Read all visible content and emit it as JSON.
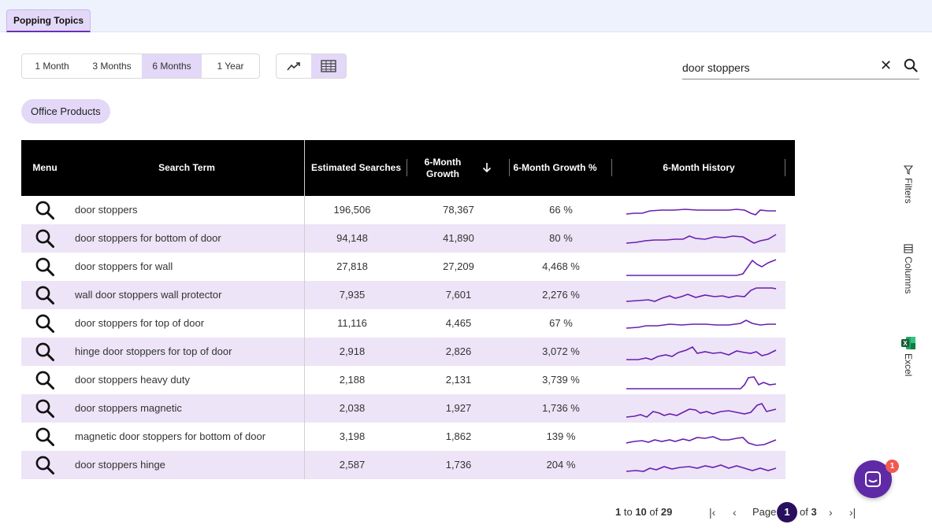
{
  "header": {
    "active_tab": "Popping Topics"
  },
  "time_ranges": [
    "1 Month",
    "3 Months",
    "6 Months",
    "1 Year"
  ],
  "active_range": "6 Months",
  "view_modes": [
    {
      "icon": "trend-line-icon"
    },
    {
      "icon": "table-grid-icon"
    }
  ],
  "active_view": "table-grid-icon",
  "search": {
    "value": "door stoppers"
  },
  "category_chip": "Office Products",
  "table": {
    "headers": {
      "menu": "Menu",
      "term": "Search Term",
      "estimated": "Estimated Searches",
      "growth_line1": "6-Month",
      "growth_line2": "Growth",
      "growth_pct": "6-Month Growth %",
      "history": "6-Month History"
    },
    "sort": {
      "column": "6-Month Growth",
      "direction": "descending"
    },
    "rows": [
      {
        "term": "door stoppers",
        "estimated": "196,506",
        "growth": "78,367",
        "pct": "66 %"
      },
      {
        "term": "door stoppers for bottom of door",
        "estimated": "94,148",
        "growth": "41,890",
        "pct": "80 %"
      },
      {
        "term": "door stoppers for wall",
        "estimated": "27,818",
        "growth": "27,209",
        "pct": "4,468 %"
      },
      {
        "term": "wall door stoppers wall protector",
        "estimated": "7,935",
        "growth": "7,601",
        "pct": "2,276 %"
      },
      {
        "term": "door stoppers for top of door",
        "estimated": "11,116",
        "growth": "4,465",
        "pct": "67 %"
      },
      {
        "term": "hinge door stoppers for top of door",
        "estimated": "2,918",
        "growth": "2,826",
        "pct": "3,072 %"
      },
      {
        "term": "door stoppers heavy duty",
        "estimated": "2,188",
        "growth": "2,131",
        "pct": "3,739 %"
      },
      {
        "term": "door stoppers magnetic",
        "estimated": "2,038",
        "growth": "1,927",
        "pct": "1,736 %"
      },
      {
        "term": "magnetic door stoppers for bottom of door",
        "estimated": "3,198",
        "growth": "1,862",
        "pct": "139 %"
      },
      {
        "term": "door stoppers hinge",
        "estimated": "2,587",
        "growth": "1,736",
        "pct": "204 %"
      }
    ]
  },
  "sidebar": {
    "filters": "Filters",
    "columns": "Columns",
    "excel": "Excel"
  },
  "pagination": {
    "range_start": "1",
    "to_word": "to",
    "range_end": "10",
    "of_word": "of",
    "total": "29",
    "page_word": "Page",
    "current_page": "1",
    "total_pages": "3"
  },
  "chat": {
    "badge_count": "1"
  },
  "colors": {
    "accent": "#6a2fb8",
    "selected_bg": "#e3d8f7",
    "row_alt": "#ede4f7",
    "sparkline": "#6a1fb0"
  }
}
